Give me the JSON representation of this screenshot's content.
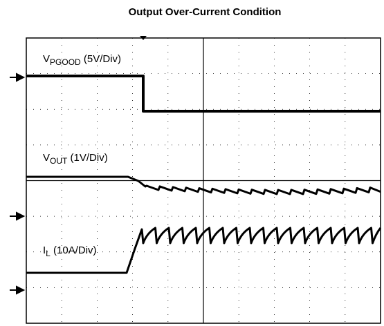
{
  "chart_data": {
    "type": "oscilloscope",
    "title": "Output Over-Current Condition",
    "series": [
      {
        "name": {
          "main": "V",
          "sub": "PGOOD",
          "rest": " (5V/Div)"
        }
      },
      {
        "name": {
          "main": "V",
          "sub": "OUT",
          "rest": " (1V/Div)"
        }
      },
      {
        "name": {
          "main": "I",
          "sub": "L",
          "rest": " (10A/Div)"
        }
      }
    ]
  }
}
